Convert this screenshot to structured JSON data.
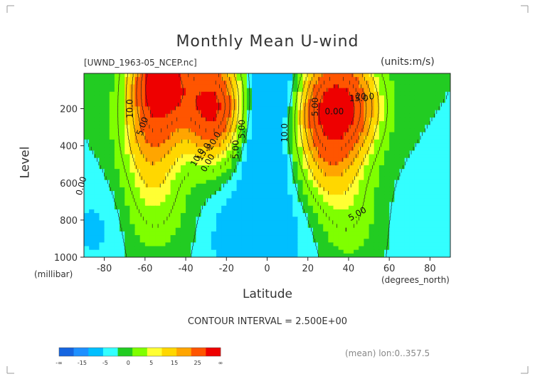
{
  "chart_data": {
    "type": "heatmap",
    "title": "Monthly Mean U-wind",
    "subtitle": "[UWND_1963-05_NCEP.nc]",
    "units_label": "(units:m/s)",
    "xlabel": "Latitude",
    "x_unit_label": "(degrees_north)",
    "ylabel": "Level",
    "y_unit_label": "(millibar)",
    "xlim": [
      -90,
      90
    ],
    "ylim": [
      1000,
      10
    ],
    "y_reversed": true,
    "x_ticks": [
      "-80",
      "-60",
      "-40",
      "-20",
      "0",
      "20",
      "40",
      "60",
      "80"
    ],
    "y_ticks": [
      "200",
      "400",
      "600",
      "800",
      "1000"
    ],
    "contour_interval_text": "CONTOUR INTERVAL = 2.500E+00",
    "contour_labels": [
      "10.0",
      "5.00",
      "0.00",
      "20.0",
      "15.0",
      "10.0",
      "5.00",
      "0.00",
      "5.00",
      "10.0",
      "5.00",
      "15.0",
      "20.0",
      "0.00",
      "5.00"
    ],
    "features": [
      {
        "lat": -52,
        "level": 40,
        "value": 35
      },
      {
        "lat": -27,
        "level": 190,
        "value": 32
      },
      {
        "lat": -57,
        "level": 350,
        "value": 14
      },
      {
        "lat": -55,
        "level": 700,
        "value": 6
      },
      {
        "lat": 28,
        "level": 170,
        "value": 22
      },
      {
        "lat": 42,
        "level": 190,
        "value": 21
      },
      {
        "lat": 30,
        "level": 450,
        "value": 12
      },
      {
        "lat": 40,
        "level": 750,
        "value": 5
      },
      {
        "lat": 5,
        "level": 40,
        "value": -8
      },
      {
        "lat": -5,
        "level": 300,
        "value": -4
      },
      {
        "lat": 0,
        "level": 550,
        "value": -5
      },
      {
        "lat": -15,
        "level": 900,
        "value": -5
      },
      {
        "lat": 10,
        "level": 900,
        "value": -3
      },
      {
        "lat": -85,
        "level": 850,
        "value": -3
      },
      {
        "lat": 75,
        "level": 850,
        "value": -2
      }
    ],
    "colorbar": {
      "labels": [
        "-∞",
        "-15",
        "-5",
        "0",
        "5",
        "15",
        "25",
        "∞"
      ],
      "colors": [
        "#1565e0",
        "#1e90ff",
        "#00bfff",
        "#33ffff",
        "#22cc22",
        "#7fff00",
        "#ffff33",
        "#ffd700",
        "#ffa500",
        "#ff5500",
        "#ee0000"
      ]
    },
    "mean_note": "(mean) lon:0..357.5"
  }
}
